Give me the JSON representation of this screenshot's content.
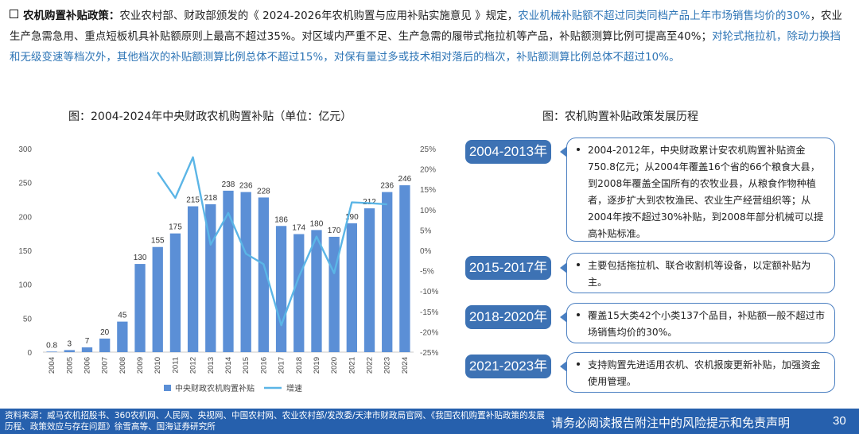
{
  "intro": {
    "lead": "农机购置补贴政策：",
    "text1": "农业农村部、财政部颁发的《 2024-2026年农机购置与应用补贴实施意见 》规定，",
    "hl1": "农业机械补贴额不超过同类同档产品上年市场销售均价的30%",
    "text2": "，农业生产急需急用、重点短板机具补贴额原则上最高不超过35%。对区域内严重不足、生产急需的履带式拖拉机等产品，补贴额测算比例可提高至40%；",
    "hl2": "对轮式拖拉机，除动力换挡和无级变速等档次外，其他档次的补贴额测算比例总体不超过15%，对保有量过多或技术相对落后的档次，补贴额测算比例总体不超过10%。"
  },
  "chart_title": "图：2004-2024年中央财政农机购置补贴（单位：亿元）",
  "timeline_title": "图：农机购置补贴政策发展历程",
  "chart_data": {
    "type": "bar",
    "categories": [
      "2004",
      "2005",
      "2006",
      "2007",
      "2008",
      "2009",
      "2010",
      "2011",
      "2012",
      "2013",
      "2014",
      "2015",
      "2016",
      "2017",
      "2018",
      "2019",
      "2020",
      "2021",
      "2022",
      "2023",
      "2024"
    ],
    "series": [
      {
        "name": "中央财政农机购置补贴",
        "type": "bar",
        "axis": "left",
        "values": [
          0.8,
          3,
          7,
          20,
          45,
          130,
          155,
          175,
          215,
          218,
          238,
          236,
          228,
          186,
          174,
          180,
          170,
          190,
          212,
          236,
          246
        ],
        "labels": [
          "0.8",
          "3",
          "7",
          "20",
          "45",
          "130",
          "155",
          "175",
          "215",
          "218",
          "238",
          "236",
          "228",
          "186",
          "174",
          "180",
          "170",
          "190",
          "212",
          "236",
          "246"
        ]
      },
      {
        "name": "增速",
        "type": "line",
        "axis": "right",
        "x": [
          "2010",
          "2011",
          "2012",
          "2013",
          "2014",
          "2015",
          "2016",
          "2017",
          "2018",
          "2019",
          "2020",
          "2021",
          "2022",
          "2023"
        ],
        "values": [
          19.2,
          12.9,
          22.9,
          1.4,
          9.2,
          -0.8,
          -3.4,
          -18.4,
          -6.5,
          3.4,
          -5.6,
          11.8,
          11.6,
          11.3
        ]
      }
    ],
    "ylim_left": [
      0,
      300
    ],
    "yticks_left": [
      "0",
      "50",
      "100",
      "150",
      "200",
      "250",
      "300"
    ],
    "ylim_right": [
      -25,
      25
    ],
    "yticks_right": [
      "25%",
      "20%",
      "15%",
      "10%",
      "5%",
      "0%",
      "-5%",
      "-10%",
      "-15%",
      "-20%",
      "-25%"
    ],
    "legend_position": "bottom",
    "colors": {
      "bar": "#5b8fd6",
      "line": "#5bb5e6"
    }
  },
  "timeline": [
    {
      "period": "2004-2013年",
      "text": "2004-2012年，中央财政累计安农机购置补贴资金750.8亿元；从2004年覆盖16个省的66个粮食大县，到2008年覆盖全国所有的农牧业县，从粮食作物种植者，逐步扩大到农牧渔民、农业生产经营组织等；从2004年按不超过30%补贴，到2008年部分机械可以提高补贴标准。"
    },
    {
      "period": "2015-2017年",
      "text": "主要包括拖拉机、联合收割机等设备，以定额补贴为主。"
    },
    {
      "period": "2018-2020年",
      "text": "覆盖15大类42个小类137个品目，补贴额一般不超过市场销售均价的30%。"
    },
    {
      "period": "2021-2023年",
      "text": "支持购置先进适用农机、农机报废更新补贴，加强资金使用管理。"
    }
  ],
  "footer": {
    "source": "资料来源：威马农机招股书、360农机网、人民网、央视网、中国农村网、农业农村部/发改委/天津市财政局官网、《我国农机购置补贴政策的发展历程、政策效应与存在问题》徐雪高等、国海证券研究所",
    "disclaimer": "请务必阅读报告附注中的风险提示和免责声明",
    "page": "30"
  },
  "colors": {
    "accent": "#2660ad",
    "timeline_tag": "#3d72b4",
    "highlight_text": "#2e75b6"
  }
}
